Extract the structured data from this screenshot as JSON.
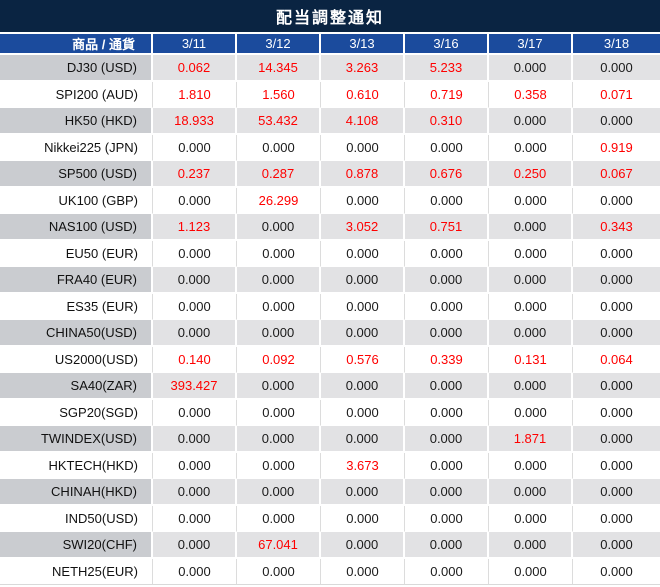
{
  "title": "配当調整通知",
  "table": {
    "label_header": "商品 / 通貨",
    "date_headers": [
      "3/11",
      "3/12",
      "3/13",
      "3/16",
      "3/17",
      "3/18"
    ],
    "rows": [
      {
        "label": "DJ30 (USD)",
        "values": [
          "0.062",
          "14.345",
          "3.263",
          "5.233",
          "0.000",
          "0.000"
        ]
      },
      {
        "label": "SPI200 (AUD)",
        "values": [
          "1.810",
          "1.560",
          "0.610",
          "0.719",
          "0.358",
          "0.071"
        ]
      },
      {
        "label": "HK50 (HKD)",
        "values": [
          "18.933",
          "53.432",
          "4.108",
          "0.310",
          "0.000",
          "0.000"
        ]
      },
      {
        "label": "Nikkei225 (JPN)",
        "values": [
          "0.000",
          "0.000",
          "0.000",
          "0.000",
          "0.000",
          "0.919"
        ]
      },
      {
        "label": "SP500 (USD)",
        "values": [
          "0.237",
          "0.287",
          "0.878",
          "0.676",
          "0.250",
          "0.067"
        ]
      },
      {
        "label": "UK100 (GBP)",
        "values": [
          "0.000",
          "26.299",
          "0.000",
          "0.000",
          "0.000",
          "0.000"
        ]
      },
      {
        "label": "NAS100 (USD)",
        "values": [
          "1.123",
          "0.000",
          "3.052",
          "0.751",
          "0.000",
          "0.343"
        ]
      },
      {
        "label": "EU50 (EUR)",
        "values": [
          "0.000",
          "0.000",
          "0.000",
          "0.000",
          "0.000",
          "0.000"
        ]
      },
      {
        "label": "FRA40 (EUR)",
        "values": [
          "0.000",
          "0.000",
          "0.000",
          "0.000",
          "0.000",
          "0.000"
        ]
      },
      {
        "label": "ES35 (EUR)",
        "values": [
          "0.000",
          "0.000",
          "0.000",
          "0.000",
          "0.000",
          "0.000"
        ]
      },
      {
        "label": "CHINA50(USD)",
        "values": [
          "0.000",
          "0.000",
          "0.000",
          "0.000",
          "0.000",
          "0.000"
        ]
      },
      {
        "label": "US2000(USD)",
        "values": [
          "0.140",
          "0.092",
          "0.576",
          "0.339",
          "0.131",
          "0.064"
        ]
      },
      {
        "label": "SA40(ZAR)",
        "values": [
          "393.427",
          "0.000",
          "0.000",
          "0.000",
          "0.000",
          "0.000"
        ]
      },
      {
        "label": "SGP20(SGD)",
        "values": [
          "0.000",
          "0.000",
          "0.000",
          "0.000",
          "0.000",
          "0.000"
        ]
      },
      {
        "label": "TWINDEX(USD)",
        "values": [
          "0.000",
          "0.000",
          "0.000",
          "0.000",
          "1.871",
          "0.000"
        ]
      },
      {
        "label": "HKTECH(HKD)",
        "values": [
          "0.000",
          "0.000",
          "3.673",
          "0.000",
          "0.000",
          "0.000"
        ]
      },
      {
        "label": "CHINAH(HKD)",
        "values": [
          "0.000",
          "0.000",
          "0.000",
          "0.000",
          "0.000",
          "0.000"
        ]
      },
      {
        "label": "IND50(USD)",
        "values": [
          "0.000",
          "0.000",
          "0.000",
          "0.000",
          "0.000",
          "0.000"
        ]
      },
      {
        "label": "SWI20(CHF)",
        "values": [
          "0.000",
          "67.041",
          "0.000",
          "0.000",
          "0.000",
          "0.000"
        ]
      },
      {
        "label": "NETH25(EUR)",
        "values": [
          "0.000",
          "0.000",
          "0.000",
          "0.000",
          "0.000",
          "0.000"
        ]
      }
    ]
  },
  "colors": {
    "title_bg": "#0a2442",
    "header_bg": "#1b4b9d",
    "row_gray": "#e2e2e4",
    "label_gray": "#caccd0",
    "nonzero_red": "#ff0000"
  }
}
